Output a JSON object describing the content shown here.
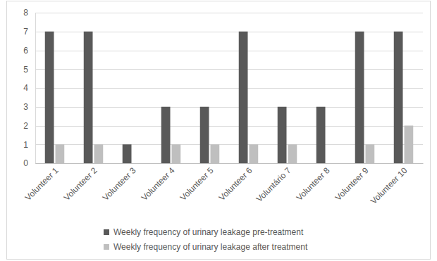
{
  "chart_data": {
    "type": "bar",
    "categories": [
      "Volunteer 1",
      "Volunteer 2",
      "Volunteer 3",
      "Volunteer 4",
      "Volunteer 5",
      "Volunteer 6",
      "Voluntário 7",
      "Volunteer 8",
      "Volunteer 9",
      "Volunteer 10"
    ],
    "series": [
      {
        "name": "Weekly frequency of urinary leakage pre-treatment",
        "color": "#595959",
        "values": [
          7,
          7,
          1,
          3,
          3,
          7,
          3,
          3,
          7,
          7
        ]
      },
      {
        "name": "Weekly frequency of urinary leakage after treatment",
        "color": "#bfbfbf",
        "values": [
          1,
          1,
          0,
          1,
          1,
          1,
          1,
          0,
          1,
          2
        ]
      }
    ],
    "ylim": [
      0,
      8
    ],
    "yticks": [
      0,
      1,
      2,
      3,
      4,
      5,
      6,
      7,
      8
    ],
    "grid": true,
    "legend": "bottom"
  }
}
